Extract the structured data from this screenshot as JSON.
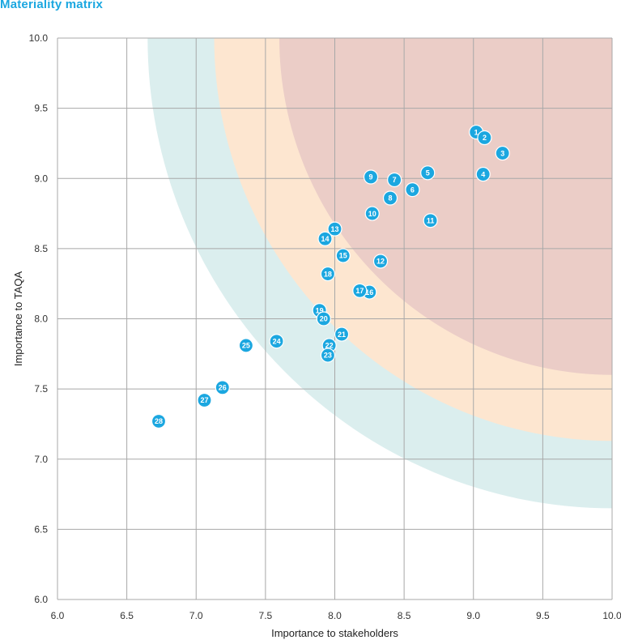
{
  "title": "Materiality matrix",
  "colors": {
    "title": "#1ba7e0",
    "point": "#1ba7e0",
    "zone_outer": "#dbeeee",
    "zone_middle": "#fde6d0",
    "zone_inner": "#ebcdc7",
    "grid": "#a8a8a8"
  },
  "chart_data": {
    "type": "scatter",
    "title": "Materiality matrix",
    "xlabel": "Importance to stakeholders",
    "ylabel": "Importance to TAQA",
    "xlim": [
      6.0,
      10.0
    ],
    "ylim": [
      6.0,
      10.0
    ],
    "xticks": [
      "6.0",
      "6.5",
      "7.0",
      "7.5",
      "8.0",
      "8.5",
      "9.0",
      "9.5",
      "10.0"
    ],
    "yticks": [
      "6.0",
      "6.5",
      "7.0",
      "7.5",
      "8.0",
      "8.5",
      "9.0",
      "9.5",
      "10.0"
    ],
    "grid": true,
    "zones": [
      {
        "name": "outer",
        "radius": 3.35
      },
      {
        "name": "middle",
        "radius": 2.87
      },
      {
        "name": "inner",
        "radius": 2.4
      }
    ],
    "points": [
      {
        "label": "1",
        "x": 9.02,
        "y": 9.33
      },
      {
        "label": "2",
        "x": 9.08,
        "y": 9.29
      },
      {
        "label": "3",
        "x": 9.21,
        "y": 9.18
      },
      {
        "label": "4",
        "x": 9.07,
        "y": 9.03
      },
      {
        "label": "5",
        "x": 8.67,
        "y": 9.04
      },
      {
        "label": "6",
        "x": 8.56,
        "y": 8.92
      },
      {
        "label": "7",
        "x": 8.43,
        "y": 8.99
      },
      {
        "label": "8",
        "x": 8.4,
        "y": 8.86
      },
      {
        "label": "9",
        "x": 8.26,
        "y": 9.01
      },
      {
        "label": "10",
        "x": 8.27,
        "y": 8.75
      },
      {
        "label": "11",
        "x": 8.69,
        "y": 8.7
      },
      {
        "label": "12",
        "x": 8.33,
        "y": 8.41
      },
      {
        "label": "13",
        "x": 8.0,
        "y": 8.64
      },
      {
        "label": "14",
        "x": 7.93,
        "y": 8.57
      },
      {
        "label": "15",
        "x": 8.06,
        "y": 8.45
      },
      {
        "label": "16",
        "x": 8.25,
        "y": 8.19
      },
      {
        "label": "17",
        "x": 8.18,
        "y": 8.2
      },
      {
        "label": "18",
        "x": 7.95,
        "y": 8.32
      },
      {
        "label": "19",
        "x": 7.89,
        "y": 8.06
      },
      {
        "label": "20",
        "x": 7.92,
        "y": 8.0
      },
      {
        "label": "21",
        "x": 8.05,
        "y": 7.89
      },
      {
        "label": "22",
        "x": 7.96,
        "y": 7.81
      },
      {
        "label": "23",
        "x": 7.95,
        "y": 7.74
      },
      {
        "label": "24",
        "x": 7.58,
        "y": 7.84
      },
      {
        "label": "25",
        "x": 7.36,
        "y": 7.81
      },
      {
        "label": "26",
        "x": 7.19,
        "y": 7.51
      },
      {
        "label": "27",
        "x": 7.06,
        "y": 7.42
      },
      {
        "label": "28",
        "x": 6.73,
        "y": 7.27
      }
    ]
  }
}
